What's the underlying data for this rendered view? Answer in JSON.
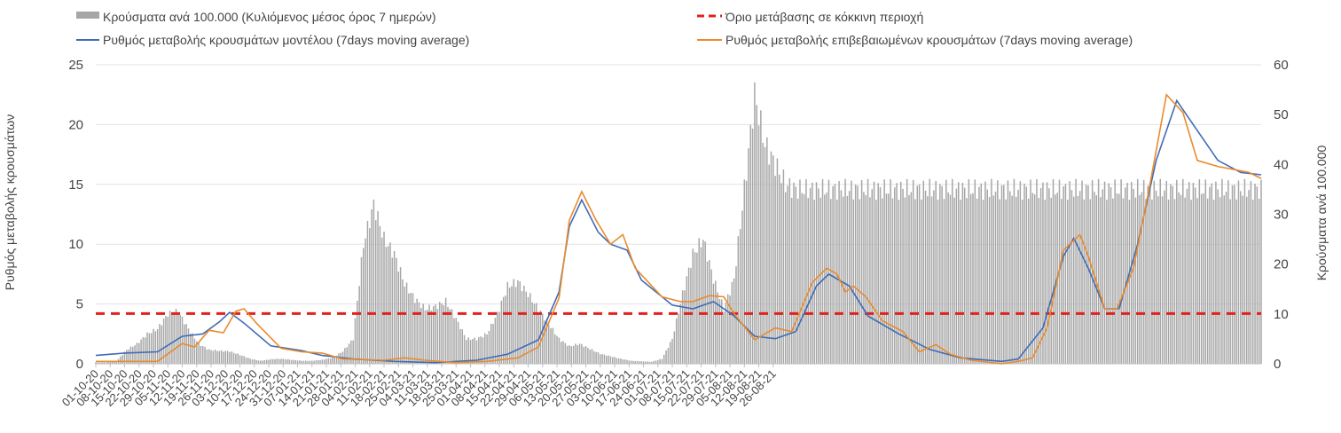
{
  "chart_data": {
    "type": "bar+line",
    "legend": {
      "placement": "top",
      "entries": [
        {
          "key": "cases",
          "label": "Κρούσματα ανά 100.000 (Κυλιόμενος μέσος όρος 7 ημερών)",
          "color": "#a6a6a6",
          "style": "bar"
        },
        {
          "key": "threshold",
          "label": "Όριο μετάβασης σε κόκκινη περιοχή",
          "color": "#e0211c",
          "style": "dashed"
        },
        {
          "key": "model",
          "label": "Ρυθμός μεταβολής κρουσμάτων μοντέλου (7days moving average)",
          "color": "#3f6cb5",
          "style": "line"
        },
        {
          "key": "confirmed",
          "label": "Ρυθμός μεταβολής επιβεβαιωμένων κρουσμάτων (7days moving average)",
          "color": "#e98b2e",
          "style": "line"
        }
      ]
    },
    "ylabel_left": "Ρυθμός μεταβολής κρουσμάτων",
    "ylabel_right": "Κρούσματα ανά 100.000",
    "ylim_left": [
      0,
      25
    ],
    "yticks_left": [
      "0",
      "5",
      "10",
      "15",
      "20",
      "25"
    ],
    "ylim_right": [
      0,
      60
    ],
    "yticks_right": [
      "0",
      "10",
      "20",
      "30",
      "40",
      "50",
      "60"
    ],
    "x_range": [
      "2020-10-01",
      "2021-08-31"
    ],
    "x_tick_labels": [
      "01-10-20",
      "08-10-20",
      "15-10-20",
      "22-10-20",
      "29-10-20",
      "05-11-20",
      "12-11-20",
      "19-11-20",
      "26-11-20",
      "03-12-20",
      "10-12-20",
      "17-12-20",
      "24-12-20",
      "31-12-20",
      "07-01-21",
      "14-01-21",
      "21-01-21",
      "28-01-21",
      "04-02-21",
      "11-02-21",
      "18-02-21",
      "25-02-21",
      "04-03-21",
      "11-03-21",
      "18-03-21",
      "25-03-21",
      "01-04-21",
      "08-04-21",
      "15-04-21",
      "22-04-21",
      "29-04-21",
      "06-05-21",
      "13-05-21",
      "20-05-21",
      "27-05-21",
      "03-06-21",
      "10-06-21",
      "17-06-21",
      "24-06-21",
      "01-07-21",
      "08-07-21",
      "15-07-21",
      "22-07-21",
      "29-07-21",
      "05-08-21",
      "12-08-21",
      "19-08-21",
      "26-08-21"
    ],
    "threshold_value": 4.2,
    "grid": "horizontal",
    "series": {
      "cases_week": [
        0.3,
        0.3,
        0.5,
        2.8,
        4,
        6,
        7,
        10,
        10.5,
        7,
        4,
        2.8,
        2.6,
        2.5,
        1.8,
        1,
        0.6,
        0.9,
        1,
        0.8,
        0.6,
        0.6,
        0.8,
        1.2,
        2.5,
        5,
        24,
        32,
        25,
        22,
        16,
        13,
        11,
        11.5,
        12.5,
        9,
        5,
        5,
        6,
        10,
        15.5,
        16.5,
        14,
        11,
        8,
        5,
        3.5,
        4,
        3,
        2,
        1.5,
        1,
        0.6,
        0.5,
        0.4,
        1,
        5,
        14,
        22,
        25,
        17,
        11,
        17,
        35,
        54,
        44,
        40,
        36,
        35
      ],
      "cases_step_days": 5,
      "model": [
        [
          0,
          0.7
        ],
        [
          14,
          0.9
        ],
        [
          30,
          1.0
        ],
        [
          42,
          2.3
        ],
        [
          52,
          2.5
        ],
        [
          60,
          3.5
        ],
        [
          65,
          4.3
        ],
        [
          72,
          3.4
        ],
        [
          85,
          1.5
        ],
        [
          100,
          1.1
        ],
        [
          110,
          0.7
        ],
        [
          125,
          0.4
        ],
        [
          145,
          0.2
        ],
        [
          165,
          0.1
        ],
        [
          185,
          0.3
        ],
        [
          200,
          0.8
        ],
        [
          215,
          2
        ],
        [
          225,
          6
        ],
        [
          230,
          11.5
        ],
        [
          236,
          13.7
        ],
        [
          244,
          11
        ],
        [
          250,
          10
        ],
        [
          258,
          9.5
        ],
        [
          265,
          7
        ],
        [
          280,
          4.9
        ],
        [
          290,
          4.6
        ],
        [
          300,
          5.2
        ],
        [
          310,
          4
        ],
        [
          320,
          2.3
        ],
        [
          330,
          2.1
        ],
        [
          340,
          2.7
        ],
        [
          350,
          6.5
        ],
        [
          356,
          7.5
        ],
        [
          366,
          6.5
        ],
        [
          375,
          4
        ],
        [
          390,
          2.5
        ],
        [
          405,
          1.2
        ],
        [
          420,
          0.5
        ],
        [
          440,
          0.2
        ],
        [
          448,
          0.4
        ],
        [
          460,
          3
        ],
        [
          470,
          9
        ],
        [
          475,
          10.5
        ],
        [
          482,
          8
        ],
        [
          490,
          4.6
        ],
        [
          497,
          4.6
        ],
        [
          506,
          10
        ],
        [
          515,
          17
        ],
        [
          525,
          22
        ],
        [
          533,
          20
        ],
        [
          545,
          17
        ],
        [
          556,
          16
        ],
        [
          566,
          15.8
        ]
      ],
      "confirmed": [
        [
          0,
          0.2
        ],
        [
          30,
          0.2
        ],
        [
          38,
          1.2
        ],
        [
          42,
          1.7
        ],
        [
          48,
          1.4
        ],
        [
          55,
          2.8
        ],
        [
          62,
          2.6
        ],
        [
          68,
          4.4
        ],
        [
          72,
          4.6
        ],
        [
          78,
          3.4
        ],
        [
          90,
          1.3
        ],
        [
          100,
          1.0
        ],
        [
          110,
          0.9
        ],
        [
          120,
          0.4
        ],
        [
          140,
          0.3
        ],
        [
          150,
          0.5
        ],
        [
          160,
          0.3
        ],
        [
          175,
          0.1
        ],
        [
          190,
          0.2
        ],
        [
          205,
          0.5
        ],
        [
          215,
          1.4
        ],
        [
          225,
          5.5
        ],
        [
          230,
          12
        ],
        [
          236,
          14.4
        ],
        [
          243,
          12
        ],
        [
          250,
          10
        ],
        [
          256,
          10.8
        ],
        [
          262,
          8
        ],
        [
          275,
          5.6
        ],
        [
          284,
          5.2
        ],
        [
          290,
          5.2
        ],
        [
          298,
          5.7
        ],
        [
          305,
          5.6
        ],
        [
          310,
          4.2
        ],
        [
          320,
          2.0
        ],
        [
          330,
          3.0
        ],
        [
          338,
          2.7
        ],
        [
          348,
          6.8
        ],
        [
          355,
          8.0
        ],
        [
          360,
          7.5
        ],
        [
          364,
          6.0
        ],
        [
          368,
          6.5
        ],
        [
          374,
          5.6
        ],
        [
          382,
          3.6
        ],
        [
          392,
          2.7
        ],
        [
          400,
          1.0
        ],
        [
          408,
          1.6
        ],
        [
          415,
          0.8
        ],
        [
          425,
          0.3
        ],
        [
          440,
          0.0
        ],
        [
          448,
          0.2
        ],
        [
          455,
          0.5
        ],
        [
          462,
          3
        ],
        [
          470,
          9.5
        ],
        [
          478,
          10.8
        ],
        [
          482,
          9
        ],
        [
          490,
          4.6
        ],
        [
          496,
          4.6
        ],
        [
          504,
          8
        ],
        [
          512,
          15
        ],
        [
          520,
          22.5
        ],
        [
          528,
          21
        ],
        [
          535,
          17
        ],
        [
          545,
          16.5
        ],
        [
          560,
          16
        ],
        [
          566,
          15.5
        ]
      ]
    }
  }
}
